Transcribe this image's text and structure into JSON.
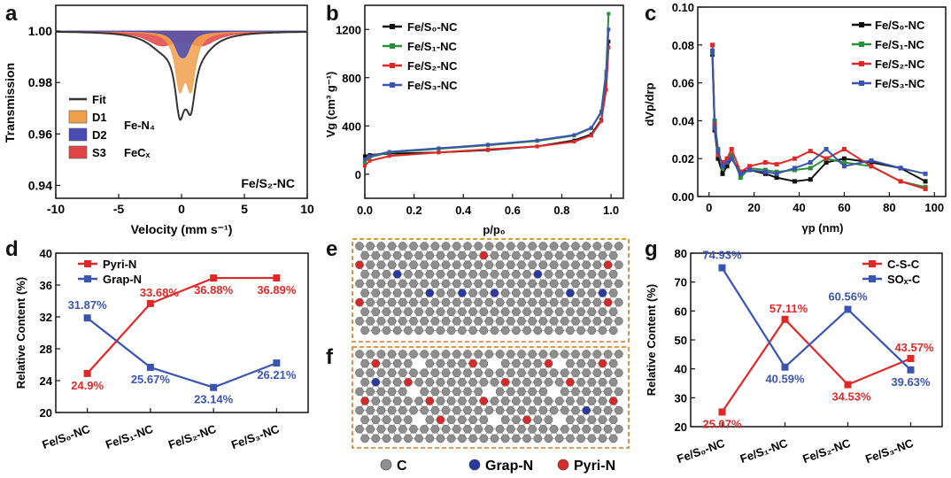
{
  "chart_data": [
    {
      "panel": "a",
      "type": "line",
      "xlabel": "Velocity (mm s⁻¹)",
      "ylabel": "Transmission",
      "xlim": [
        -10,
        10
      ],
      "ylim": [
        0.935,
        1.01
      ],
      "xticks": [
        -10,
        -5,
        0,
        5,
        10
      ],
      "yticks": [
        0.94,
        0.96,
        0.98,
        1.0
      ],
      "legend": [
        {
          "label": "Fit",
          "color": "#333333"
        },
        {
          "label": "D1",
          "color": "#f0a04b",
          "note": "Fe-N₄"
        },
        {
          "label": "D2",
          "color": "#4b4bb3"
        },
        {
          "label": "S3",
          "color": "#e04545",
          "note": "FeCₓ"
        }
      ],
      "sample_label": "Fe/S₂-NC",
      "components": [
        {
          "name": "D1",
          "center": 0.3,
          "depth": 0.04,
          "width": 0.9
        },
        {
          "name": "D2",
          "center": 0.1,
          "depth": 0.013,
          "width": 0.5
        },
        {
          "name": "S3",
          "split": 1.6,
          "depth": 0.005,
          "width": 1.4
        }
      ]
    },
    {
      "panel": "b",
      "type": "line",
      "xlabel": "p/p₀",
      "ylabel": "Vg (cm³ g⁻¹)",
      "xlim": [
        0,
        1.05
      ],
      "ylim": [
        -200,
        1400
      ],
      "xticks": [
        0.0,
        0.2,
        0.4,
        0.6,
        0.8,
        1.0
      ],
      "yticks": [
        0,
        400,
        800,
        1200
      ],
      "series": [
        {
          "name": "Fe/S₀-NC",
          "color": "#111111",
          "x": [
            0,
            0.02,
            0.1,
            0.3,
            0.5,
            0.7,
            0.85,
            0.92,
            0.96,
            0.98,
            0.99
          ],
          "y": [
            150,
            160,
            170,
            180,
            200,
            230,
            280,
            330,
            450,
            700,
            1100
          ]
        },
        {
          "name": "Fe/S₁-NC",
          "color": "#2a8f3a",
          "x": [
            0,
            0.02,
            0.1,
            0.3,
            0.5,
            0.7,
            0.85,
            0.92,
            0.96,
            0.98,
            0.99
          ],
          "y": [
            100,
            140,
            180,
            210,
            240,
            275,
            320,
            380,
            520,
            850,
            1330
          ]
        },
        {
          "name": "Fe/S₂-NC",
          "color": "#e02828",
          "x": [
            0,
            0.02,
            0.1,
            0.3,
            0.5,
            0.7,
            0.85,
            0.92,
            0.96,
            0.98,
            0.99
          ],
          "y": [
            70,
            110,
            150,
            180,
            205,
            230,
            270,
            320,
            440,
            700,
            1050
          ]
        },
        {
          "name": "Fe/S₃-NC",
          "color": "#3a55b0",
          "x": [
            0,
            0.02,
            0.1,
            0.3,
            0.5,
            0.7,
            0.85,
            0.92,
            0.96,
            0.98,
            0.99
          ],
          "y": [
            120,
            150,
            185,
            215,
            245,
            280,
            325,
            385,
            510,
            820,
            1200
          ]
        }
      ]
    },
    {
      "panel": "c",
      "type": "line",
      "xlabel": "γp (nm)",
      "ylabel": "dVp/drp",
      "xlim": [
        -5,
        105
      ],
      "ylim": [
        0,
        0.1
      ],
      "xticks": [
        0,
        20,
        40,
        60,
        80,
        100
      ],
      "yticks": [
        0.0,
        0.02,
        0.04,
        0.06,
        0.08,
        0.1
      ],
      "series": [
        {
          "name": "Fe/S₀-NC",
          "color": "#111111",
          "x": [
            1.5,
            2.5,
            4,
            6,
            8,
            10,
            14,
            18,
            25,
            30,
            38,
            45,
            52,
            60,
            72,
            85,
            96
          ],
          "y": [
            0.075,
            0.035,
            0.02,
            0.012,
            0.016,
            0.02,
            0.013,
            0.014,
            0.012,
            0.01,
            0.008,
            0.009,
            0.018,
            0.02,
            0.018,
            0.015,
            0.008
          ]
        },
        {
          "name": "Fe/S₁-NC",
          "color": "#2a8f3a",
          "x": [
            1.5,
            2.5,
            4,
            6,
            8,
            10,
            14,
            18,
            25,
            30,
            38,
            45,
            52,
            60,
            72,
            85,
            96
          ],
          "y": [
            0.076,
            0.04,
            0.025,
            0.015,
            0.02,
            0.022,
            0.01,
            0.015,
            0.014,
            0.013,
            0.014,
            0.015,
            0.02,
            0.018,
            0.016,
            0.008,
            0.005
          ]
        },
        {
          "name": "Fe/S₂-NC",
          "color": "#e02828",
          "x": [
            1.5,
            2.5,
            4,
            6,
            8,
            10,
            14,
            18,
            25,
            30,
            38,
            45,
            52,
            60,
            72,
            85,
            96
          ],
          "y": [
            0.08,
            0.038,
            0.022,
            0.018,
            0.02,
            0.025,
            0.013,
            0.016,
            0.018,
            0.017,
            0.02,
            0.024,
            0.02,
            0.025,
            0.016,
            0.008,
            0.004
          ]
        },
        {
          "name": "Fe/S₃-NC",
          "color": "#3a55b0",
          "x": [
            1.5,
            2.5,
            4,
            6,
            8,
            10,
            14,
            18,
            25,
            30,
            38,
            45,
            52,
            60,
            72,
            85,
            96
          ],
          "y": [
            0.077,
            0.036,
            0.024,
            0.016,
            0.018,
            0.02,
            0.012,
            0.014,
            0.013,
            0.012,
            0.015,
            0.018,
            0.025,
            0.016,
            0.019,
            0.015,
            0.012
          ]
        }
      ]
    },
    {
      "panel": "d",
      "type": "line",
      "xlabel": "",
      "ylabel": "Relative Content (%)",
      "categories": [
        "Fe/S₀-NC",
        "Fe/S₁-NC",
        "Fe/S₂-NC",
        "Fe/S₃-NC"
      ],
      "ylim": [
        20,
        40
      ],
      "yticks": [
        20,
        24,
        28,
        32,
        36,
        40
      ],
      "series": [
        {
          "name": "Pyri-N",
          "color": "#e02828",
          "values": [
            24.9,
            33.68,
            36.88,
            36.89
          ],
          "labels": [
            "24.9%",
            "33.68%",
            "36.88%",
            "36.89%"
          ]
        },
        {
          "name": "Grap-N",
          "color": "#3a55b0",
          "values": [
            31.87,
            25.67,
            23.14,
            26.21
          ],
          "labels": [
            "31.87%",
            "25.67%",
            "23.14%",
            "26.21%"
          ]
        }
      ]
    },
    {
      "panel": "g",
      "type": "line",
      "xlabel": "",
      "ylabel": "Relative Content (%)",
      "categories": [
        "Fe/S₀-NC",
        "Fe/S₁-NC",
        "Fe/S₂-NC",
        "Fe/S₃-NC"
      ],
      "ylim": [
        20,
        80
      ],
      "yticks": [
        20,
        30,
        40,
        50,
        60,
        70,
        80
      ],
      "series": [
        {
          "name": "C-S-C",
          "color": "#e02828",
          "values": [
            25.07,
            57.11,
            34.53,
            43.57
          ],
          "labels": [
            "25.07%",
            "57.11%",
            "34.53%",
            "43.57%"
          ]
        },
        {
          "name": "SOₓ-C",
          "color": "#3a55b0",
          "values": [
            74.93,
            40.59,
            60.56,
            39.63
          ],
          "labels": [
            "74.93%",
            "40.59%",
            "60.56%",
            "39.63%"
          ]
        }
      ]
    }
  ],
  "panel_letters": [
    "a",
    "b",
    "c",
    "d",
    "e",
    "f",
    "g"
  ],
  "structures": {
    "legend": [
      {
        "label": "C",
        "color": "#8e8e8e"
      },
      {
        "label": "Grap-N",
        "color": "#2b3a9e"
      },
      {
        "label": "Pyri-N",
        "color": "#d42a2a"
      }
    ]
  },
  "colors": {
    "black": "#111111",
    "green": "#2a8f3a",
    "red": "#e02828",
    "blue": "#3a55b0",
    "orange_box": "#e08a2e"
  }
}
